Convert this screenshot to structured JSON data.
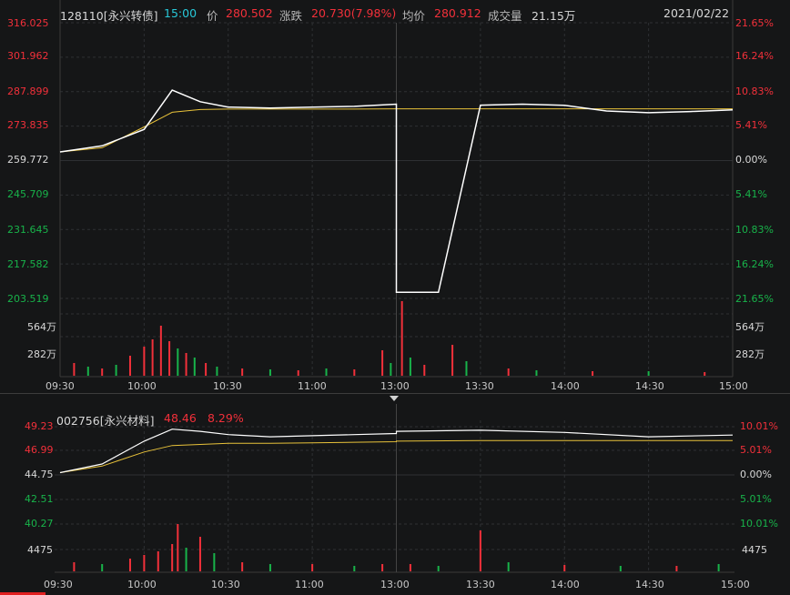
{
  "top": {
    "info": {
      "code": "128110[永兴转债]",
      "time": "15:00",
      "price_label": "价",
      "price": "280.502",
      "change_label": "涨跌",
      "change": "20.730(7.98%)",
      "avg_label": "均价",
      "avg": "280.912",
      "volume_label": "成交量",
      "volume": "21.15万",
      "date": "2021/02/22"
    },
    "price_axis": [
      "316.025",
      "301.962",
      "287.899",
      "273.835",
      "259.772",
      "245.709",
      "231.645",
      "217.582",
      "203.519"
    ],
    "pct_axis": [
      "21.65%",
      "16.24%",
      "10.83%",
      "5.41%",
      "0.00%",
      "5.41%",
      "10.83%",
      "16.24%",
      "21.65%"
    ],
    "vol_axis_left": [
      "564万",
      "282万"
    ],
    "vol_axis_right": [
      "564万",
      "282万"
    ],
    "time_axis": [
      "09:30",
      "10:00",
      "10:30",
      "11:00",
      "11:30",
      "13:00",
      "13:30",
      "14:00",
      "14:30",
      "15:00"
    ]
  },
  "bottom": {
    "info": {
      "code": "002756[永兴材料]",
      "price": "48.46",
      "pct": "8.29%"
    },
    "price_axis": [
      "49.23",
      "46.99",
      "44.75",
      "42.51",
      "40.27"
    ],
    "pct_axis": [
      "10.01%",
      "5.01%",
      "0.00%",
      "5.01%",
      "10.01%"
    ],
    "vol_axis_left": [
      "4475"
    ],
    "vol_axis_right": [
      "4475"
    ],
    "time_axis": [
      "09:30",
      "10:00",
      "10:30",
      "11:00",
      "11:30",
      "13:00",
      "13:30",
      "14:00",
      "14:30",
      "15:00"
    ]
  },
  "colors": {
    "background": "#151617",
    "up": "#f2303a",
    "down": "#18b34a",
    "price_line": "#ffffff",
    "avg_line": "#e8c23a",
    "grid": "#2e3033",
    "code_cyan": "#28c8d8"
  },
  "chart_data": [
    {
      "type": "line",
      "title": "128110[永兴转债]",
      "x": [
        "09:30",
        "09:45",
        "10:00",
        "10:10",
        "10:20",
        "10:30",
        "10:45",
        "11:00",
        "11:15",
        "11:30",
        "13:00",
        "13:15",
        "13:30",
        "13:45",
        "14:00",
        "14:15",
        "14:30",
        "14:45",
        "15:00"
      ],
      "series": [
        {
          "name": "价",
          "values": [
            263.3,
            265.8,
            272.5,
            288.5,
            283.8,
            281.6,
            281.2,
            281.6,
            281.9,
            282.8,
            206.0,
            206.0,
            282.4,
            282.8,
            282.3,
            280.0,
            279.3,
            279.8,
            280.5
          ]
        },
        {
          "name": "均价",
          "values": [
            263.3,
            265.0,
            273.5,
            279.5,
            280.6,
            280.8,
            280.8,
            280.8,
            280.8,
            280.9,
            280.9,
            280.9,
            280.9,
            280.9,
            280.9,
            280.9,
            280.9,
            280.9,
            280.9
          ]
        }
      ],
      "ylim": [
        203.519,
        316.025
      ],
      "grid": true
    },
    {
      "type": "line",
      "title": "002756[永兴材料]",
      "x": [
        "09:30",
        "09:45",
        "10:00",
        "10:10",
        "10:20",
        "10:30",
        "10:45",
        "11:00",
        "11:15",
        "11:30",
        "13:00",
        "13:30",
        "14:00",
        "14:30",
        "15:00"
      ],
      "series": [
        {
          "name": "price",
          "values": [
            45.0,
            45.8,
            47.9,
            49.0,
            48.8,
            48.5,
            48.3,
            48.4,
            48.5,
            48.6,
            48.8,
            48.9,
            48.7,
            48.3,
            48.46
          ]
        },
        {
          "name": "avg",
          "values": [
            45.0,
            45.6,
            46.9,
            47.5,
            47.6,
            47.7,
            47.7,
            47.75,
            47.8,
            47.85,
            47.9,
            47.95,
            47.95,
            47.95,
            47.95
          ]
        }
      ],
      "ylim": [
        40.27,
        49.23
      ],
      "grid": true
    }
  ]
}
